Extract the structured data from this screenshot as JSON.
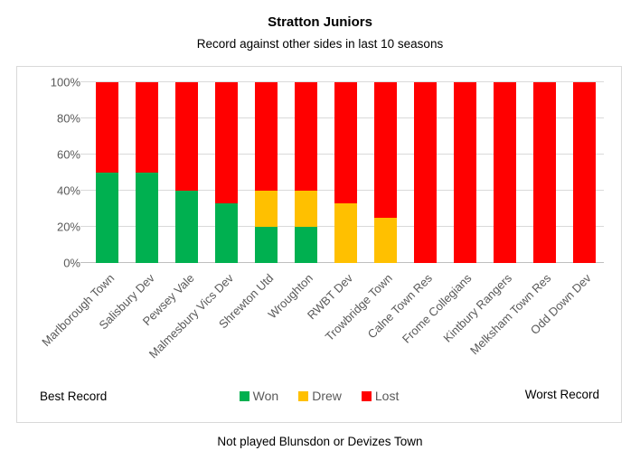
{
  "title": "Stratton Juniors",
  "subtitle": "Record against other sides in last 10 seasons",
  "footnote": "Not played Blunsdon or Devizes Town",
  "annotations": {
    "left": "Best Record",
    "right": "Worst Record"
  },
  "legend": [
    {
      "label": "Won",
      "color": "#00B050"
    },
    {
      "label": "Drew",
      "color": "#FFC000"
    },
    {
      "label": "Lost",
      "color": "#FF0000"
    }
  ],
  "colors": {
    "won": "#00B050",
    "drew": "#FFC000",
    "lost": "#FF0000",
    "gridline": "#D9D9D9",
    "axis_text": "#595959",
    "frame_border": "#D9D9D9"
  },
  "chart_data": {
    "type": "bar",
    "stacked": true,
    "grid": true,
    "legend_position": "bottom",
    "ylim": [
      0,
      100
    ],
    "y_ticks": [
      {
        "value": 0,
        "label": "0%"
      },
      {
        "value": 20,
        "label": "20%"
      },
      {
        "value": 40,
        "label": "40%"
      },
      {
        "value": 60,
        "label": "60%"
      },
      {
        "value": 80,
        "label": "80%"
      },
      {
        "value": 100,
        "label": "100%"
      }
    ],
    "categories": [
      "Marlborough Town",
      "Salisbury Dev",
      "Pewsey Vale",
      "Malmesbury Vics Dev",
      "Shrewton Utd",
      "Wroughton",
      "RWBT Dev",
      "Trowbridge Town",
      "Calne Town Res",
      "Frome Collegians",
      "Kintbury Rangers",
      "Melksham Town Res",
      "Odd Down Dev"
    ],
    "series": [
      {
        "name": "Won",
        "color": "#00B050",
        "values": [
          50,
          50,
          40,
          33,
          20,
          20,
          0,
          0,
          0,
          0,
          0,
          0,
          0
        ]
      },
      {
        "name": "Drew",
        "color": "#FFC000",
        "values": [
          0,
          0,
          0,
          0,
          20,
          20,
          33,
          25,
          0,
          0,
          0,
          0,
          0
        ]
      },
      {
        "name": "Lost",
        "color": "#FF0000",
        "values": [
          50,
          50,
          60,
          67,
          60,
          60,
          67,
          75,
          100,
          100,
          100,
          100,
          100
        ]
      }
    ]
  }
}
